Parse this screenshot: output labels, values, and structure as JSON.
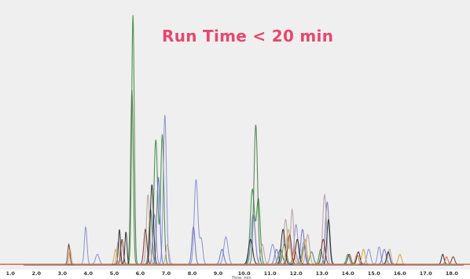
{
  "overlay": {
    "title": "Run Time < 20 min",
    "title_color": "#e5486f"
  },
  "chart_data": {
    "type": "line",
    "xlim": [
      0.6,
      18.7
    ],
    "ylim": [
      0,
      100
    ],
    "x_ticks": [
      "1.0",
      "2.0",
      "3.0",
      "4.0",
      "5.0",
      "6.0",
      "7.0",
      "8.0",
      "9.0",
      "10.0",
      "11.0",
      "12.0",
      "13.0",
      "14.0",
      "15.0",
      "16.0",
      "17.0",
      "18.0"
    ],
    "xlabel": "Time, min",
    "grid": false,
    "background": "#efefef",
    "series": [
      {
        "color": "#3c8a3e",
        "peaks": [
          [
            5.72,
            100,
            0.05
          ],
          [
            6.6,
            50,
            0.07
          ],
          [
            6.85,
            52,
            0.06
          ],
          [
            10.32,
            30,
            0.08
          ],
          [
            10.55,
            26,
            0.07
          ],
          [
            11.55,
            8,
            0.08
          ],
          [
            12.3,
            7,
            0.07
          ],
          [
            12.95,
            6,
            0.06
          ],
          [
            14.0,
            4,
            0.06
          ]
        ]
      },
      {
        "color": "#4e7a4c",
        "peaks": [
          [
            5.68,
            70,
            0.05
          ],
          [
            6.4,
            22,
            0.06
          ],
          [
            10.45,
            56,
            0.07
          ],
          [
            11.4,
            6,
            0.08
          ],
          [
            12.6,
            5,
            0.07
          ]
        ]
      },
      {
        "color": "#8a8fcf",
        "peaks": [
          [
            3.9,
            15,
            0.05
          ],
          [
            4.35,
            4,
            0.07
          ],
          [
            6.55,
            20,
            0.06
          ],
          [
            6.95,
            60,
            0.06
          ],
          [
            8.15,
            34,
            0.07
          ],
          [
            8.35,
            10,
            0.06
          ],
          [
            9.3,
            11,
            0.08
          ],
          [
            11.1,
            8,
            0.08
          ],
          [
            12.0,
            16,
            0.07
          ],
          [
            12.3,
            9,
            0.07
          ],
          [
            14.8,
            6,
            0.07
          ],
          [
            15.2,
            7,
            0.06
          ]
        ]
      },
      {
        "color": "#6d71c2",
        "peaks": [
          [
            6.7,
            35,
            0.06
          ],
          [
            8.05,
            15,
            0.06
          ],
          [
            9.15,
            6,
            0.07
          ],
          [
            10.35,
            20,
            0.08
          ],
          [
            11.25,
            6,
            0.07
          ],
          [
            12.25,
            14,
            0.07
          ],
          [
            13.2,
            25,
            0.07
          ],
          [
            15.4,
            6,
            0.07
          ]
        ]
      },
      {
        "color": "#b8a0a0",
        "peaks": [
          [
            5.15,
            9,
            0.05
          ],
          [
            6.3,
            28,
            0.06
          ],
          [
            7.05,
            8,
            0.06
          ],
          [
            10.7,
            8,
            0.07
          ],
          [
            11.6,
            18,
            0.07
          ],
          [
            11.85,
            22,
            0.06
          ],
          [
            12.45,
            12,
            0.07
          ],
          [
            13.1,
            28,
            0.07
          ],
          [
            15.6,
            6,
            0.06
          ]
        ]
      },
      {
        "color": "#2a2a2a",
        "peaks": [
          [
            5.2,
            14,
            0.04
          ],
          [
            5.45,
            13,
            0.04
          ],
          [
            6.45,
            32,
            0.06
          ],
          [
            10.25,
            10,
            0.08
          ],
          [
            11.5,
            14,
            0.07
          ],
          [
            12.05,
            10,
            0.07
          ],
          [
            13.25,
            18,
            0.06
          ],
          [
            14.4,
            5,
            0.06
          ],
          [
            15.55,
            5,
            0.06
          ],
          [
            17.65,
            4,
            0.05
          ]
        ]
      },
      {
        "color": "#7a3434",
        "peaks": [
          [
            3.25,
            8,
            0.04
          ],
          [
            5.3,
            10,
            0.05
          ],
          [
            6.2,
            14,
            0.06
          ],
          [
            11.75,
            12,
            0.07
          ],
          [
            13.05,
            10,
            0.07
          ],
          [
            14.05,
            4,
            0.06
          ],
          [
            18.05,
            3,
            0.06
          ]
        ]
      },
      {
        "color": "#c9a54a",
        "peaks": [
          [
            3.3,
            6,
            0.04
          ],
          [
            5.05,
            6,
            0.05
          ],
          [
            11.7,
            14,
            0.07
          ],
          [
            12.35,
            10,
            0.06
          ],
          [
            14.6,
            6,
            0.06
          ],
          [
            16.0,
            4,
            0.06
          ]
        ]
      },
      {
        "color": "#d96a4a",
        "peaks": [
          [
            11.95,
            6,
            0.07
          ],
          [
            14.35,
            4,
            0.06
          ],
          [
            17.8,
            3,
            0.05
          ]
        ]
      }
    ]
  }
}
